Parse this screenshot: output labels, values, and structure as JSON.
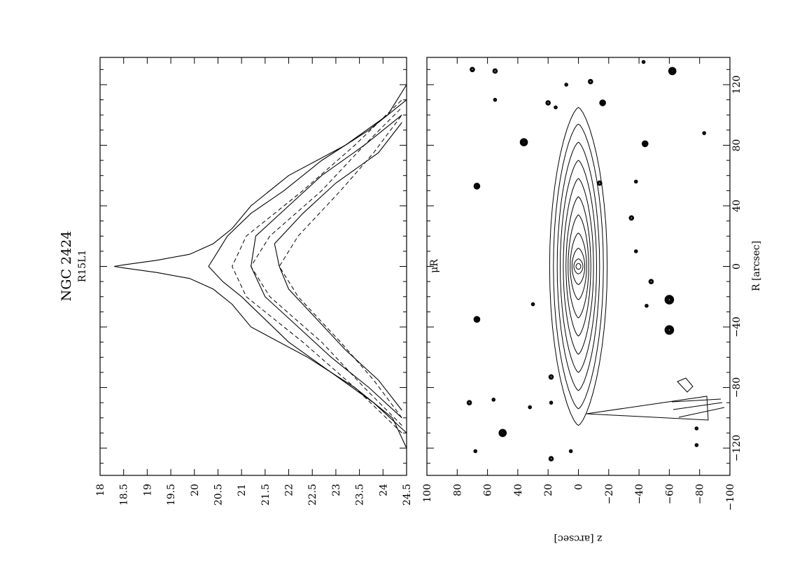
{
  "figure": {
    "galaxy": "NGC 2424",
    "band_code": "R15L1",
    "rotation": "90deg-ccw"
  },
  "chart_data": [
    {
      "type": "line",
      "title": "",
      "xlabel": "",
      "ylabel": "μR",
      "xlim": [
        -138,
        138
      ],
      "ylim": [
        18,
        24.5
      ],
      "y_inverted": true,
      "x_ticks": [
        "−120",
        "−80",
        "−40",
        "0",
        "40",
        "80",
        "120"
      ],
      "y_ticks": [
        "18",
        "18.5",
        "19",
        "19.5",
        "20",
        "20.5",
        "21",
        "21.5",
        "22",
        "22.5",
        "23",
        "23.5",
        "24",
        "24.5"
      ],
      "series": [
        {
          "style": "solid",
          "x": [
            -120,
            -100,
            -80,
            -60,
            -40,
            -25,
            -15,
            -8,
            -4,
            -1,
            0,
            1,
            4,
            8,
            15,
            25,
            40,
            60,
            80,
            100,
            120
          ],
          "y": [
            24.5,
            24.2,
            23.4,
            22.4,
            21.2,
            20.8,
            20.4,
            19.9,
            19.2,
            18.5,
            18.3,
            18.5,
            19.2,
            19.9,
            20.4,
            20.8,
            21.2,
            22.0,
            23.2,
            24.1,
            24.5
          ]
        },
        {
          "style": "solid",
          "x": [
            -110,
            -90,
            -70,
            -50,
            -35,
            -20,
            -10,
            0,
            10,
            20,
            35,
            50,
            70,
            90,
            110
          ],
          "y": [
            24.5,
            23.8,
            22.9,
            22.0,
            21.5,
            21.0,
            20.6,
            20.3,
            20.5,
            20.7,
            21.2,
            21.9,
            22.7,
            23.7,
            24.5
          ]
        },
        {
          "style": "solid",
          "x": [
            -100,
            -80,
            -60,
            -40,
            -20,
            0,
            20,
            40,
            60,
            80,
            100
          ],
          "y": [
            24.4,
            23.7,
            22.9,
            22.2,
            21.5,
            21.2,
            21.3,
            22.0,
            22.7,
            23.6,
            24.4
          ]
        },
        {
          "style": "solid",
          "x": [
            -95,
            -75,
            -55,
            -35,
            -15,
            0,
            15,
            35,
            55,
            75,
            95
          ],
          "y": [
            24.4,
            23.9,
            23.2,
            22.6,
            22.0,
            21.8,
            21.7,
            22.3,
            23.0,
            23.9,
            24.4
          ]
        },
        {
          "style": "dashed",
          "x": [
            -110,
            -80,
            -50,
            -20,
            0,
            20,
            50,
            80,
            110
          ],
          "y": [
            24.4,
            23.4,
            22.3,
            21.1,
            20.8,
            21.1,
            22.3,
            23.4,
            24.4
          ]
        },
        {
          "style": "dashed",
          "x": [
            -105,
            -80,
            -50,
            -20,
            0,
            20,
            50,
            80,
            105
          ],
          "y": [
            24.4,
            23.6,
            22.7,
            21.6,
            21.2,
            21.6,
            22.7,
            23.6,
            24.4
          ]
        },
        {
          "style": "dashed",
          "x": [
            -100,
            -75,
            -50,
            -20,
            0,
            20,
            50,
            75,
            100
          ],
          "y": [
            24.4,
            23.8,
            23.1,
            22.2,
            21.8,
            22.2,
            23.1,
            23.8,
            24.4
          ]
        }
      ]
    },
    {
      "type": "contour",
      "title": "",
      "xlabel": "R [arcsec]",
      "ylabel": "z [arcsec]",
      "xlim": [
        -138,
        138
      ],
      "ylim": [
        -100,
        100
      ],
      "x_ticks": [
        "−120",
        "−80",
        "−40",
        "0",
        "40",
        "80",
        "120"
      ],
      "y_ticks": [
        "100",
        "80",
        "60",
        "40",
        "20",
        "0",
        "−20",
        "−40",
        "−60",
        "−80",
        "−100"
      ],
      "galaxy_contours": {
        "center": [
          0,
          0
        ],
        "semi_major_axes": [
          105,
          94,
          82,
          70,
          58,
          46,
          34,
          22,
          12,
          5,
          2
        ],
        "semi_minor_axes": [
          19,
          16.5,
          14,
          12,
          10,
          8.2,
          6.8,
          5.4,
          4.2,
          3.0,
          1.6
        ]
      },
      "stars": [
        {
          "x": -122,
          "z": 68,
          "r": 2
        },
        {
          "x": -110,
          "z": 50,
          "r": 5
        },
        {
          "x": -90,
          "z": 72,
          "r": 3
        },
        {
          "x": -88,
          "z": 56,
          "r": 2
        },
        {
          "x": -93,
          "z": 32,
          "r": 2
        },
        {
          "x": -90,
          "z": 18,
          "r": 2
        },
        {
          "x": -73,
          "z": 18,
          "r": 3
        },
        {
          "x": -127,
          "z": 18,
          "r": 3
        },
        {
          "x": -122,
          "z": 5,
          "r": 2
        },
        {
          "x": -35,
          "z": 67,
          "r": 4
        },
        {
          "x": -25,
          "z": 30,
          "r": 2
        },
        {
          "x": 53,
          "z": 67,
          "r": 4
        },
        {
          "x": 82,
          "z": 36,
          "r": 5
        },
        {
          "x": 108,
          "z": 20,
          "r": 3
        },
        {
          "x": 105,
          "z": 15,
          "r": 2
        },
        {
          "x": 120,
          "z": 8,
          "r": 2
        },
        {
          "x": 122,
          "z": -8,
          "r": 3
        },
        {
          "x": 108,
          "z": -16,
          "r": 4
        },
        {
          "x": 130,
          "z": 70,
          "r": 3
        },
        {
          "x": 129,
          "z": 55,
          "r": 3
        },
        {
          "x": 110,
          "z": 55,
          "r": 2
        },
        {
          "x": 55,
          "z": -14,
          "r": 3
        },
        {
          "x": 81,
          "z": -44,
          "r": 4
        },
        {
          "x": 32,
          "z": -35,
          "r": 3
        },
        {
          "x": -10,
          "z": -48,
          "r": 3
        },
        {
          "x": -26,
          "z": -45,
          "r": 2
        },
        {
          "x": -22,
          "z": -60,
          "r": 6
        },
        {
          "x": -42,
          "z": -60,
          "r": 6
        },
        {
          "x": 129,
          "z": -62,
          "r": 5
        },
        {
          "x": 135,
          "z": -43,
          "r": 2
        },
        {
          "x": 56,
          "z": -38,
          "r": 2
        },
        {
          "x": 10,
          "z": -38,
          "r": 2
        },
        {
          "x": 88,
          "z": -83,
          "r": 2
        },
        {
          "x": -118,
          "z": -78,
          "r": 2
        },
        {
          "x": -107,
          "z": -78,
          "r": 2
        }
      ]
    }
  ]
}
